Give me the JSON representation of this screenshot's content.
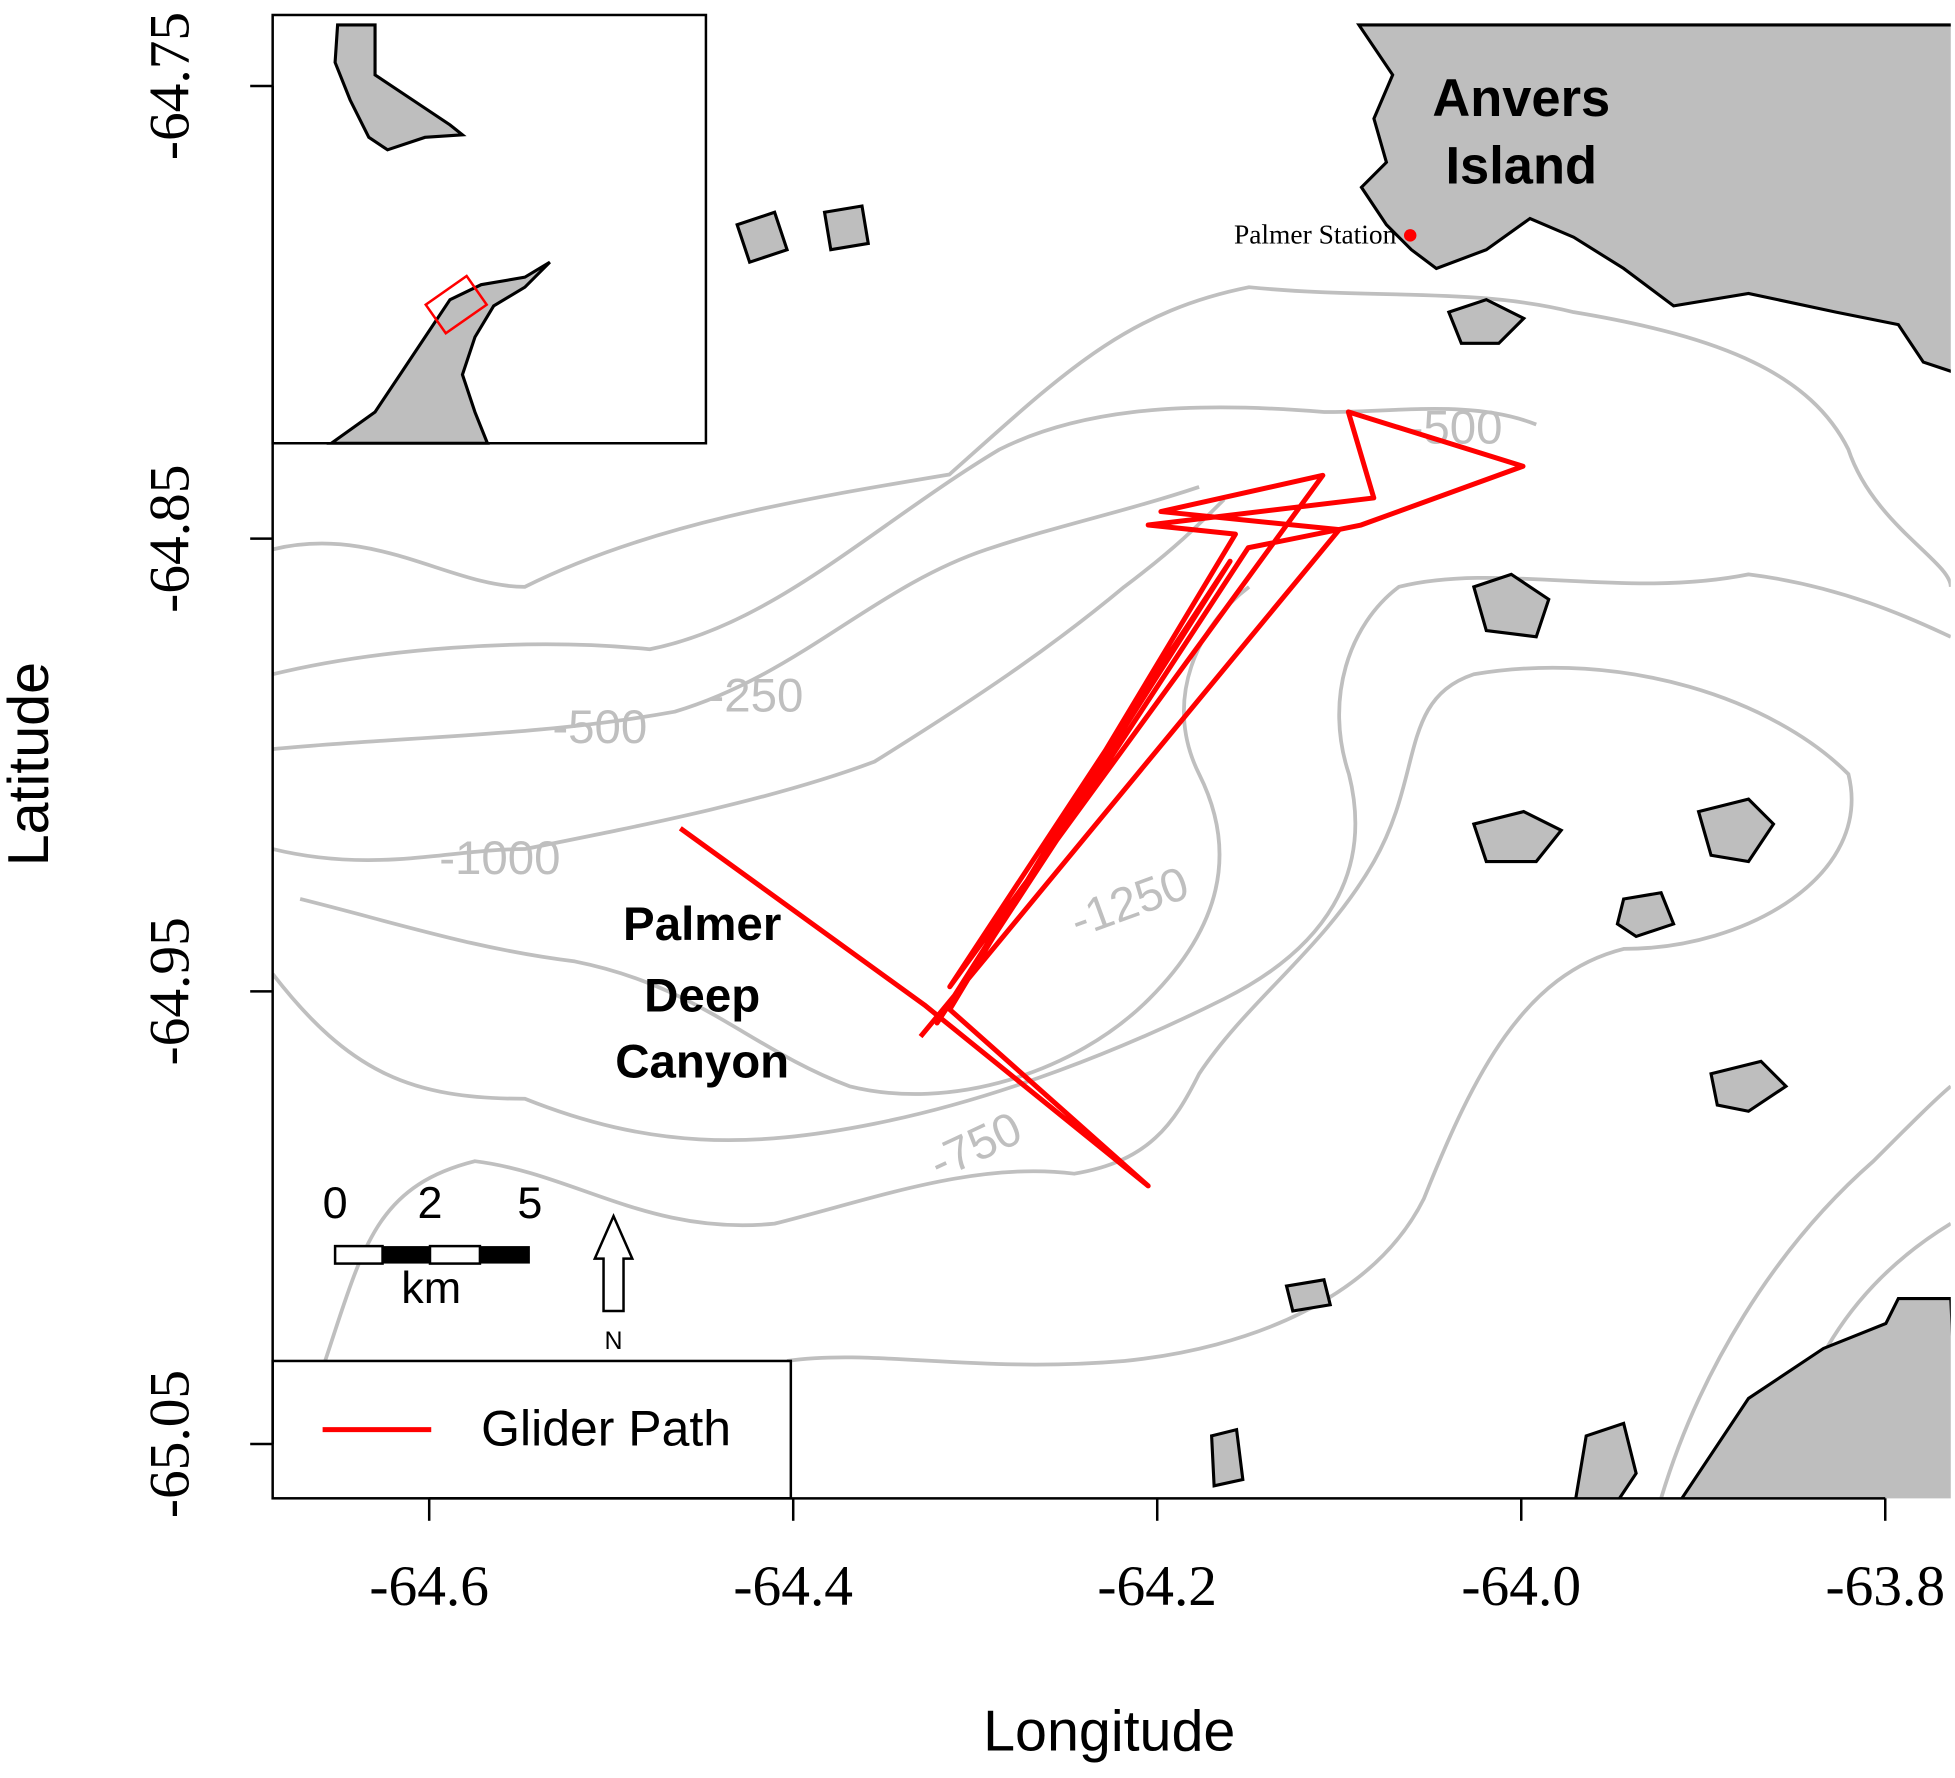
{
  "chart_data": {
    "type": "map",
    "xlabel": "Longitude",
    "ylabel": "Latitude",
    "xlim": [
      -64.686,
      -63.764
    ],
    "ylim": [
      -65.062,
      -64.731
    ],
    "xticks": [
      -64.6,
      -64.4,
      -64.2,
      {
        "value": -64,
        "label": "-64.0"
      },
      -63.8
    ],
    "yticks": [
      -64.75,
      -64.85,
      -64.95,
      -65.05
    ],
    "series": [
      {
        "name": "Glider Path",
        "color": "#ff0000",
        "x": [
          -64.462,
          -64.328,
          -64.205,
          -64.314,
          -64.157,
          -64.205,
          -64.081,
          -64.095,
          -63.999,
          -64.088,
          -64.15,
          -64.321,
          -64.16,
          -64.314,
          -64.109,
          -64.198,
          -64.1,
          -64.33
        ],
        "y": [
          -64.914,
          -64.953,
          -64.993,
          -64.954,
          -64.849,
          -64.847,
          -64.841,
          -64.822,
          -64.834,
          -64.847,
          -64.852,
          -64.957,
          -64.855,
          -64.949,
          -64.836,
          -64.844,
          -64.848,
          -64.96
        ]
      }
    ],
    "station": {
      "name": "Palmer Station",
      "lon": -64.061,
      "lat": -64.783,
      "color": "#ff0000"
    },
    "place_labels": {
      "island": [
        "Anvers",
        "Island"
      ],
      "canyon": [
        "Palmer",
        "Deep",
        "Canyon"
      ]
    },
    "contour_labels": [
      "-500",
      "-250",
      "-500",
      "-1000",
      "-1250",
      "-750"
    ],
    "scale_bar": {
      "labels": [
        "0",
        "2",
        "5"
      ],
      "unit": "km"
    },
    "north": "N"
  }
}
